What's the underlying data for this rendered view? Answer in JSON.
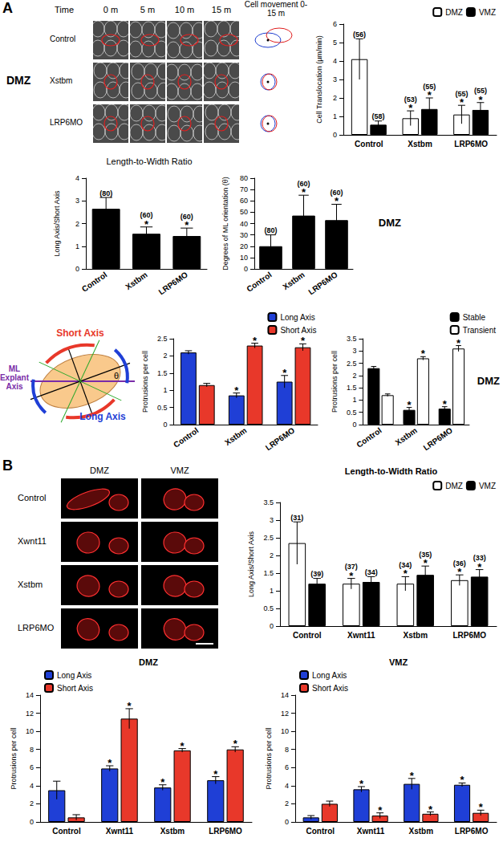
{
  "figure_labels": [
    "A",
    "B"
  ],
  "panel_a_images": {
    "side_label": "DMZ",
    "time_label": "Time",
    "columns": [
      "0 m",
      "5 m",
      "10 m",
      "15 m"
    ],
    "movement_label": "Cell movement 0-15 m",
    "rows": [
      "Control",
      "Xstbm",
      "LRP6MO"
    ]
  },
  "panel_a_diagram": {
    "short_axis": "Short Axis",
    "long_axis": "Long Axis",
    "explant_axis": "ML Explant Axis",
    "angle": "θ"
  },
  "panel_b_images": {
    "columns": [
      "DMZ",
      "VMZ"
    ],
    "rows": [
      "Control",
      "Xwnt11",
      "Xstbm",
      "LRP6MO"
    ]
  },
  "chart_data": [
    {
      "type": "bar",
      "ylabel": "Cell Translocation (µm/min)",
      "categories": [
        "Control",
        "Xstbm",
        "LRP6MO"
      ],
      "series": [
        {
          "name": "DMZ",
          "color": "#ffffff",
          "values": [
            4.1,
            0.9,
            1.1
          ],
          "errors": [
            1.1,
            0.4,
            0.5
          ],
          "n_labels": [
            "(56)",
            "(53)",
            "(55)"
          ],
          "significance": [
            null,
            "*",
            "*"
          ]
        },
        {
          "name": "VMZ",
          "color": "#000000",
          "values": [
            0.55,
            1.4,
            1.35
          ],
          "errors": [
            0.2,
            0.6,
            0.4
          ],
          "n_labels": [
            "(58)",
            "(55)",
            "(55)"
          ],
          "significance": [
            null,
            "*",
            "*"
          ]
        }
      ],
      "ylim": [
        0,
        6
      ],
      "yticks": [
        0,
        1,
        2,
        3,
        4,
        5,
        6
      ],
      "legend": "upper right"
    },
    {
      "type": "bar",
      "title": "Length-to-Width Ratio",
      "ylabel": "Long Axis/Short Axis",
      "categories": [
        "Control",
        "Xstbm",
        "LRP6MO"
      ],
      "series": [
        {
          "color": "#000000",
          "values": [
            2.65,
            1.55,
            1.45
          ],
          "errors": [
            0.5,
            0.3,
            0.35
          ],
          "n_labels": [
            "(80)",
            "(60)",
            "(60)"
          ],
          "significance": [
            null,
            "*",
            "*"
          ]
        }
      ],
      "ylim": [
        0,
        4
      ],
      "yticks": [
        0,
        1,
        2,
        3,
        4
      ]
    },
    {
      "type": "bar",
      "ylabel": "Degrees of ML orientation (θ)",
      "annotations": [
        "DMZ"
      ],
      "categories": [
        "Control",
        "Xstbm",
        "LRP6MO"
      ],
      "series": [
        {
          "color": "#000000",
          "values": [
            20,
            47,
            43
          ],
          "errors": [
            10,
            18,
            14
          ],
          "n_labels": [
            "(80)",
            "(60)",
            "(60)"
          ],
          "significance": [
            null,
            "*",
            "*"
          ]
        }
      ],
      "ylim": [
        0,
        80
      ],
      "yticks": [
        0,
        10,
        20,
        30,
        40,
        50,
        60,
        70,
        80
      ]
    },
    {
      "type": "bar",
      "ylabel": "Protrusions per cell",
      "categories": [
        "Control",
        "Xstbm",
        "LRP6MO"
      ],
      "series": [
        {
          "name": "Long Axis",
          "color": "#1f3fd6",
          "values": [
            2.1,
            0.85,
            1.25
          ],
          "errors": [
            0.05,
            0.07,
            0.18
          ],
          "significance": [
            null,
            "*",
            "*"
          ]
        },
        {
          "name": "Short Axis",
          "color": "#e8382a",
          "values": [
            1.15,
            2.3,
            2.25
          ],
          "errors": [
            0.05,
            0.07,
            0.1
          ],
          "significance": [
            null,
            "*",
            "*"
          ]
        }
      ],
      "ylim": [
        0,
        2.5
      ],
      "yticks": [
        0,
        0.5,
        1,
        1.5,
        2,
        2.5
      ],
      "legend": "upper right"
    },
    {
      "type": "bar",
      "ylabel": "Protrusions per cell",
      "annotations": [
        "DMZ"
      ],
      "categories": [
        "Control",
        "Xstbm",
        "LRP6MO"
      ],
      "series": [
        {
          "name": "Stable",
          "color": "#000000",
          "values": [
            2.3,
            0.6,
            0.65
          ],
          "errors": [
            0.07,
            0.1,
            0.08
          ],
          "significance": [
            null,
            "*",
            "*"
          ]
        },
        {
          "name": "Transient",
          "color": "#ffffff",
          "values": [
            1.2,
            2.7,
            3.1
          ],
          "errors": [
            0.05,
            0.07,
            0.12
          ],
          "significance": [
            null,
            "*",
            "*"
          ]
        }
      ],
      "ylim": [
        0,
        3.5
      ],
      "yticks": [
        0,
        0.5,
        1,
        1.5,
        2,
        2.5,
        3,
        3.5
      ],
      "legend": "upper right"
    },
    {
      "type": "bar",
      "title": "Length-to-Width Ratio",
      "ylabel": "Long Axis/Short Axis",
      "categories": [
        "Control",
        "Xwnt11",
        "Xstbm",
        "LRP6MO"
      ],
      "series": [
        {
          "name": "DMZ",
          "color": "#ffffff",
          "values": [
            2.35,
            1.2,
            1.2,
            1.3
          ],
          "errors": [
            0.6,
            0.15,
            0.2,
            0.15
          ],
          "n_labels": [
            "(31)",
            "(37)",
            "(34)",
            "(36)"
          ],
          "significance": [
            null,
            "*",
            "*",
            "*"
          ]
        },
        {
          "name": "VMZ",
          "color": "#000000",
          "values": [
            1.2,
            1.25,
            1.45,
            1.4
          ],
          "errors": [
            0.15,
            0.15,
            0.25,
            0.2
          ],
          "n_labels": [
            "(39)",
            "(34)",
            "(35)",
            "(33)"
          ],
          "significance": [
            null,
            null,
            "*",
            "*"
          ]
        }
      ],
      "ylim": [
        0,
        3.5
      ],
      "yticks": [
        0,
        0.5,
        1,
        1.5,
        2,
        2.5,
        3,
        3.5
      ],
      "legend": "upper right"
    },
    {
      "type": "bar",
      "title": "DMZ",
      "ylabel": "Protrusions per cell",
      "categories": [
        "Control",
        "Xwnt11",
        "Xstbm",
        "LRP6MO"
      ],
      "series": [
        {
          "name": "Long Axis",
          "color": "#1f3fd6",
          "values": [
            3.5,
            5.9,
            3.8,
            4.6
          ],
          "errors": [
            1.0,
            0.3,
            0.3,
            0.4
          ],
          "significance": [
            null,
            "*",
            "*",
            "*"
          ]
        },
        {
          "name": "Short Axis",
          "color": "#e8382a",
          "values": [
            0.5,
            11.4,
            7.9,
            8.0
          ],
          "errors": [
            0.3,
            1.1,
            0.2,
            0.3
          ],
          "significance": [
            null,
            "*",
            "*",
            "*"
          ]
        }
      ],
      "ylim": [
        0,
        14
      ],
      "yticks": [
        0,
        2,
        4,
        6,
        8,
        10,
        12,
        14
      ],
      "legend": "upper left"
    },
    {
      "type": "bar",
      "title": "VMZ",
      "ylabel": "Protrusions per cell",
      "categories": [
        "Control",
        "Xwnt11",
        "Xstbm",
        "LRP6MO"
      ],
      "series": [
        {
          "name": "Long Axis",
          "color": "#1f3fd6",
          "values": [
            0.5,
            3.6,
            4.2,
            4.1
          ],
          "errors": [
            0.2,
            0.3,
            0.6,
            0.2
          ],
          "significance": [
            null,
            "*",
            "*",
            "*"
          ]
        },
        {
          "name": "Short Axis",
          "color": "#e8382a",
          "values": [
            2.0,
            0.7,
            0.9,
            1.0
          ],
          "errors": [
            0.3,
            0.3,
            0.2,
            0.3
          ],
          "significance": [
            null,
            "*",
            "*",
            "*"
          ]
        }
      ],
      "ylim": [
        0,
        14
      ],
      "yticks": [
        0,
        2,
        4,
        6,
        8,
        10,
        12,
        14
      ],
      "legend": "upper left"
    }
  ]
}
